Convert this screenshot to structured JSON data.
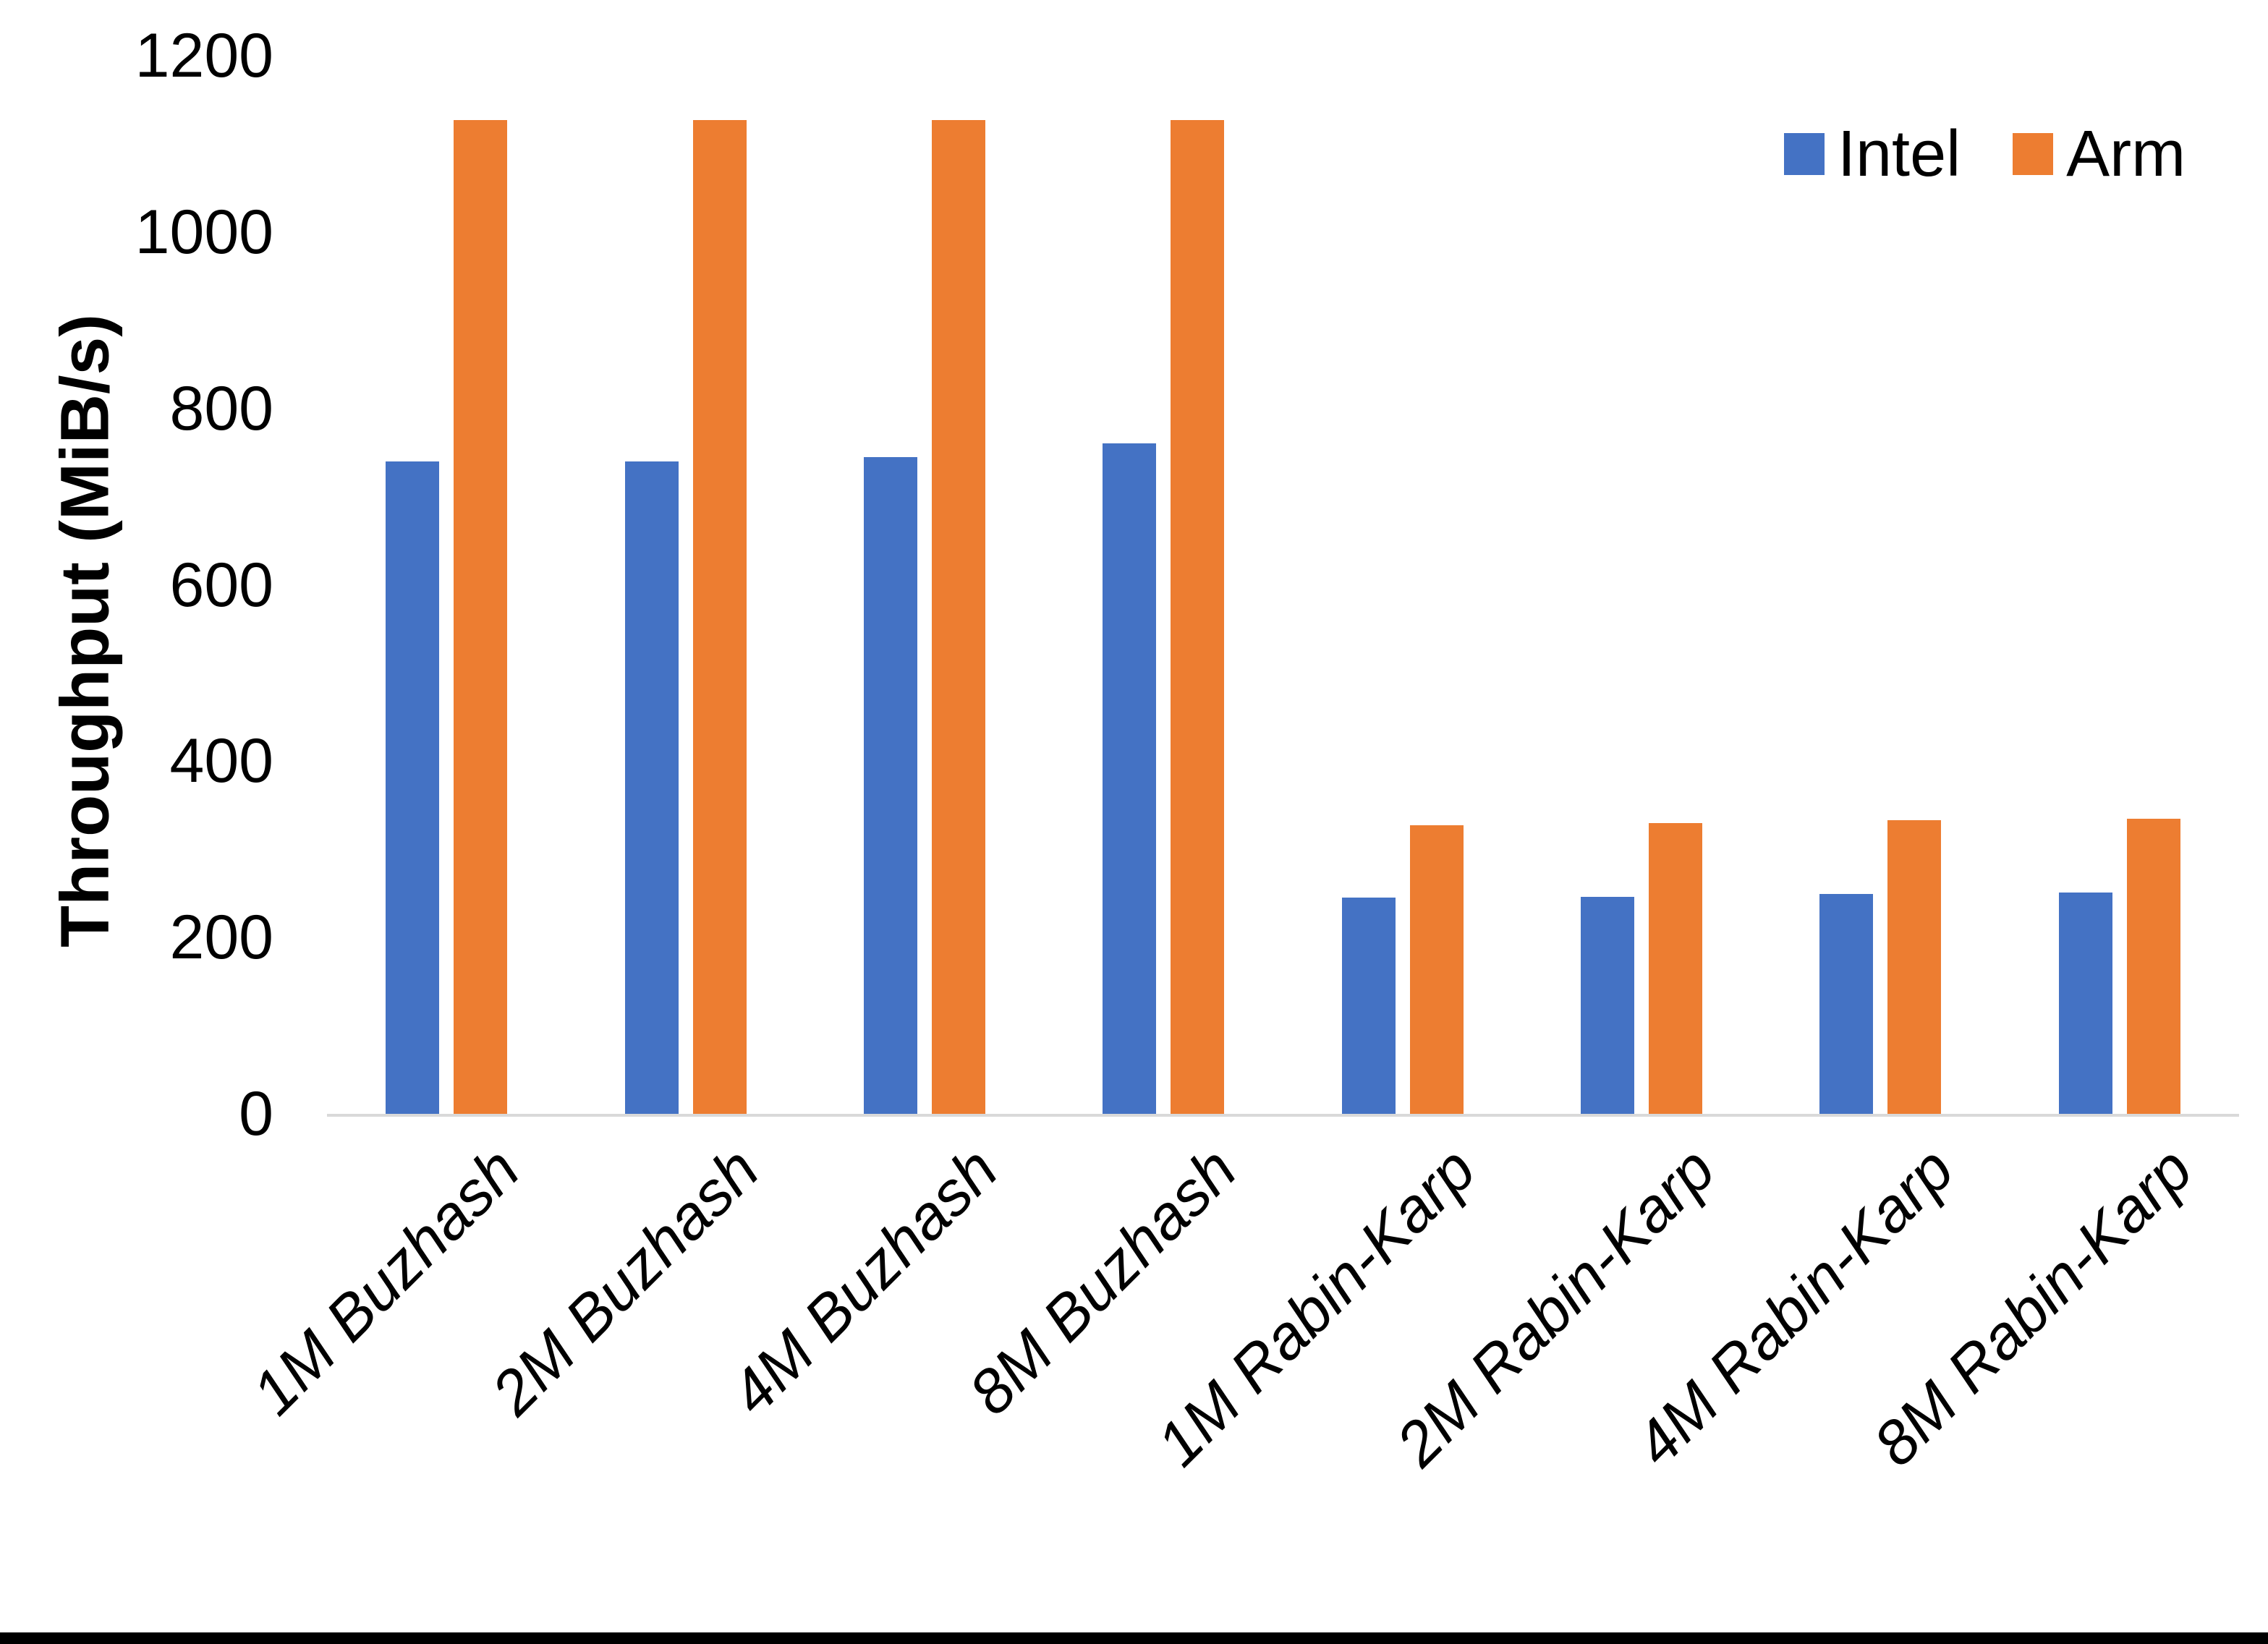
{
  "figure": {
    "background": "#ffffff",
    "bottom_border_color": "#000000",
    "axis_line_color": "#d9d9d9",
    "text_color": "#000000"
  },
  "y_axis": {
    "title": "Throughput (MiB/s)",
    "ticks": [
      1200,
      1000,
      800,
      600,
      400,
      200,
      0
    ]
  },
  "legend": {
    "position": "top-right",
    "items": [
      {
        "label": "Intel",
        "color": "#4472C4"
      },
      {
        "label": "Arm",
        "color": "#ED7D31"
      }
    ]
  },
  "chart_data": {
    "type": "bar",
    "title": "",
    "xlabel": "",
    "ylabel": "Throughput (MiB/s)",
    "ylim": [
      0,
      1200
    ],
    "grid": false,
    "legend_position": "top-right",
    "categories": [
      "1M Buzhash",
      "2M Buzhash",
      "4M Buzhash",
      "8M Buzhash",
      "1M Rabin-Karp",
      "2M Rabin-Karp",
      "4M Rabin-Karp",
      "8M Rabin-Karp"
    ],
    "series": [
      {
        "name": "Intel",
        "color": "#4472C4",
        "values": [
          740,
          740,
          745,
          760,
          245,
          246,
          249,
          251
        ]
      },
      {
        "name": "Arm",
        "color": "#ED7D31",
        "values": [
          1127,
          1127,
          1127,
          1127,
          327,
          330,
          333,
          335
        ]
      }
    ]
  }
}
